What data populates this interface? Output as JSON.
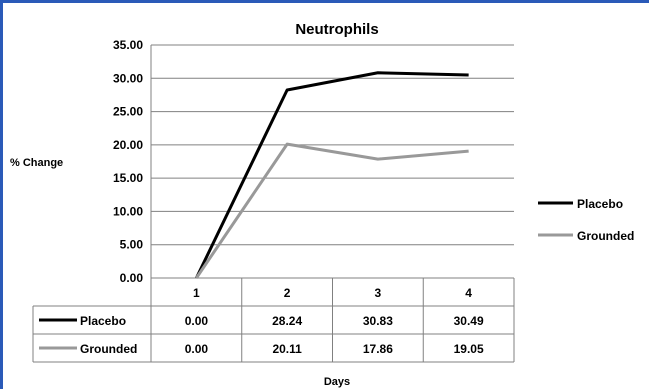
{
  "chart_data": {
    "type": "line",
    "title": "Neutrophils",
    "xlabel": "Days",
    "ylabel": "% Change",
    "categories": [
      "1",
      "2",
      "3",
      "4"
    ],
    "ylim": [
      0,
      35
    ],
    "yticks": [
      "0.00",
      "5.00",
      "10.00",
      "15.00",
      "20.00",
      "25.00",
      "30.00",
      "35.00"
    ],
    "grid": true,
    "legend": "right",
    "series": [
      {
        "name": "Placebo",
        "color": "#000000",
        "values": [
          0.0,
          28.24,
          30.83,
          30.49
        ],
        "labels": [
          "0.00",
          "28.24",
          "30.83",
          "30.49"
        ]
      },
      {
        "name": "Grounded",
        "color": "#999999",
        "values": [
          0.0,
          20.11,
          17.86,
          19.05
        ],
        "labels": [
          "0.00",
          "20.11",
          "17.86",
          "19.05"
        ]
      }
    ]
  }
}
